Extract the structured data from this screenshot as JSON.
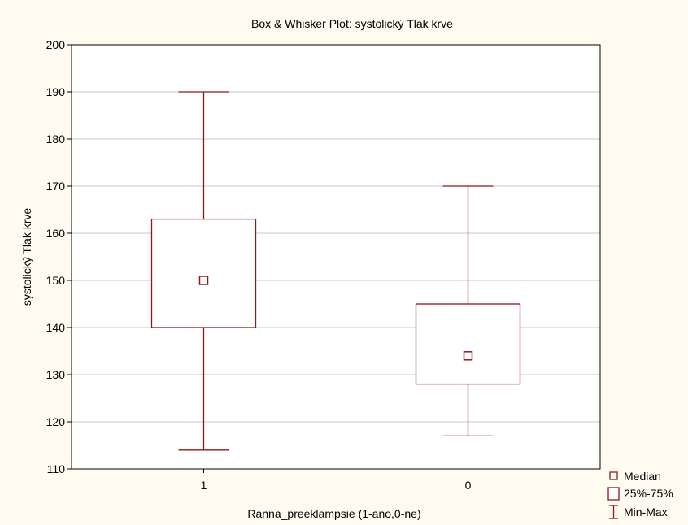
{
  "chart_data": {
    "type": "box",
    "title": "Box & Whisker Plot: systolický Tlak krve",
    "xlabel": "Ranna_preeklampsie (1-ano,0-ne)",
    "ylabel": "systolický Tlak krve",
    "ylim": [
      110,
      200
    ],
    "yticks": [
      110,
      120,
      130,
      140,
      150,
      160,
      170,
      180,
      190,
      200
    ],
    "grid": true,
    "color": "#8b1a1a",
    "categories": [
      "1",
      "0"
    ],
    "boxes": [
      {
        "category": "1",
        "min": 114,
        "q1": 140,
        "median": 150,
        "q3": 163,
        "max": 190
      },
      {
        "category": "0",
        "min": 117,
        "q1": 128,
        "median": 134,
        "q3": 145,
        "max": 170
      }
    ],
    "legend": {
      "position": "bottom-right",
      "items": [
        "Median",
        "25%-75%",
        "Min-Max"
      ]
    }
  }
}
